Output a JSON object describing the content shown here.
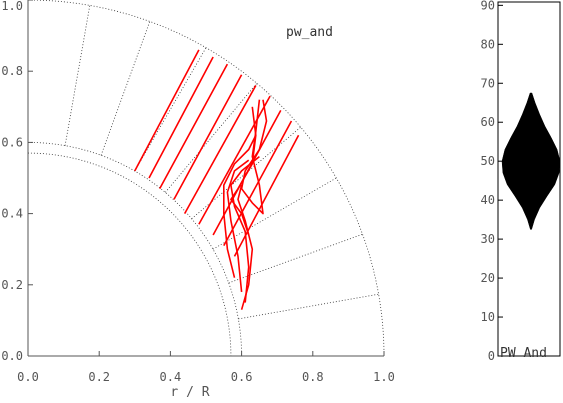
{
  "chart_data": [
    {
      "type": "line",
      "panel": "main",
      "annotation": "pw_and",
      "xlabel": "r / R",
      "xlim": [
        0.0,
        1.0
      ],
      "ylim": [
        0.0,
        1.0
      ],
      "x_ticks": [
        "0.0",
        "0.2",
        "0.4",
        "0.6",
        "0.8",
        "1.0"
      ],
      "y_ticks": [
        "0.0",
        "0.2",
        "0.4",
        "0.6",
        "0.8",
        "1.0"
      ],
      "x_tick_values": [
        0.0,
        0.2,
        0.4,
        0.6,
        0.8,
        1.0
      ],
      "y_tick_values": [
        0.0,
        0.2,
        0.4,
        0.6,
        0.8,
        1.0
      ],
      "grid": {
        "arc_radii": [
          0.57,
          0.6,
          1.0
        ],
        "radial_line_angles_deg": [
          10,
          20,
          30,
          40,
          50,
          60,
          70,
          80
        ]
      },
      "series_color": "#ff0000",
      "field_lines": [
        [
          [
            0.3,
            0.52
          ],
          [
            0.48,
            0.86
          ]
        ],
        [
          [
            0.34,
            0.5
          ],
          [
            0.52,
            0.84
          ]
        ],
        [
          [
            0.37,
            0.47
          ],
          [
            0.56,
            0.82
          ]
        ],
        [
          [
            0.41,
            0.44
          ],
          [
            0.6,
            0.79
          ]
        ],
        [
          [
            0.44,
            0.4
          ],
          [
            0.64,
            0.76
          ]
        ],
        [
          [
            0.48,
            0.37
          ],
          [
            0.68,
            0.73
          ]
        ],
        [
          [
            0.52,
            0.34
          ],
          [
            0.71,
            0.69
          ]
        ],
        [
          [
            0.55,
            0.31
          ],
          [
            0.74,
            0.66
          ]
        ],
        [
          [
            0.58,
            0.28
          ],
          [
            0.76,
            0.62
          ]
        ]
      ],
      "loops": [
        [
          [
            0.58,
            0.22
          ],
          [
            0.56,
            0.3
          ],
          [
            0.55,
            0.4
          ],
          [
            0.55,
            0.48
          ],
          [
            0.58,
            0.54
          ],
          [
            0.62,
            0.58
          ],
          [
            0.64,
            0.62
          ]
        ],
        [
          [
            0.6,
            0.18
          ],
          [
            0.59,
            0.28
          ],
          [
            0.57,
            0.38
          ],
          [
            0.56,
            0.46
          ],
          [
            0.58,
            0.52
          ],
          [
            0.62,
            0.55
          ]
        ],
        [
          [
            0.61,
            0.15
          ],
          [
            0.62,
            0.25
          ],
          [
            0.61,
            0.35
          ],
          [
            0.58,
            0.42
          ],
          [
            0.57,
            0.48
          ],
          [
            0.6,
            0.52
          ],
          [
            0.65,
            0.56
          ]
        ],
        [
          [
            0.6,
            0.13
          ],
          [
            0.62,
            0.2
          ],
          [
            0.63,
            0.3
          ],
          [
            0.61,
            0.38
          ],
          [
            0.59,
            0.44
          ],
          [
            0.6,
            0.48
          ]
        ],
        [
          [
            0.66,
            0.72
          ],
          [
            0.67,
            0.66
          ],
          [
            0.65,
            0.58
          ],
          [
            0.61,
            0.52
          ],
          [
            0.6,
            0.47
          ],
          [
            0.63,
            0.43
          ],
          [
            0.66,
            0.4
          ],
          [
            0.65,
            0.48
          ],
          [
            0.63,
            0.56
          ],
          [
            0.64,
            0.63
          ],
          [
            0.65,
            0.72
          ]
        ],
        [
          [
            0.63,
            0.7
          ],
          [
            0.64,
            0.62
          ],
          [
            0.63,
            0.54
          ],
          [
            0.59,
            0.47
          ],
          [
            0.57,
            0.44
          ],
          [
            0.6,
            0.4
          ],
          [
            0.62,
            0.34
          ]
        ]
      ]
    },
    {
      "type": "area",
      "panel": "side",
      "label": "PW And",
      "fill_color": "#000000",
      "y_ticks": [
        "0",
        "10",
        "20",
        "30",
        "40",
        "50",
        "60",
        "70",
        "80",
        "90"
      ],
      "y_tick_values": [
        0,
        10,
        20,
        30,
        40,
        50,
        60,
        70,
        80,
        90
      ],
      "ylim": [
        0,
        90
      ],
      "profile": [
        [
          32.5,
          0.02
        ],
        [
          35,
          0.12
        ],
        [
          38,
          0.3
        ],
        [
          41,
          0.55
        ],
        [
          44,
          0.82
        ],
        [
          47,
          0.97
        ],
        [
          50,
          1.0
        ],
        [
          53,
          0.9
        ],
        [
          56,
          0.7
        ],
        [
          59,
          0.48
        ],
        [
          62,
          0.3
        ],
        [
          65,
          0.14
        ],
        [
          67.5,
          0.03
        ]
      ]
    }
  ]
}
